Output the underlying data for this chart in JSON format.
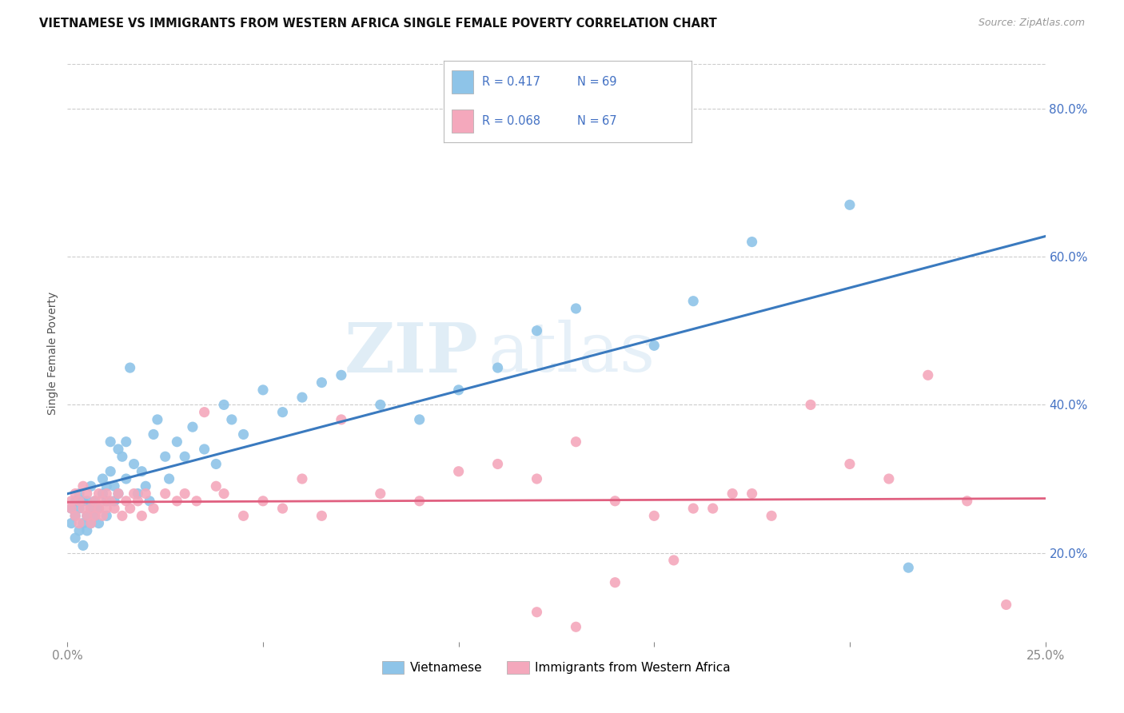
{
  "title": "VIETNAMESE VS IMMIGRANTS FROM WESTERN AFRICA SINGLE FEMALE POVERTY CORRELATION CHART",
  "source": "Source: ZipAtlas.com",
  "ylabel": "Single Female Poverty",
  "legend_label1": "Vietnamese",
  "legend_label2": "Immigrants from Western Africa",
  "r1": "0.417",
  "n1": "69",
  "r2": "0.068",
  "n2": "67",
  "color_blue": "#8ec4e8",
  "color_pink": "#f4a8bc",
  "color_blue_line": "#3a7abf",
  "color_pink_line": "#e06080",
  "watermark_zip": "ZIP",
  "watermark_atlas": "atlas",
  "xlim": [
    0.0,
    0.25
  ],
  "ylim": [
    0.08,
    0.86
  ],
  "yticks": [
    0.2,
    0.4,
    0.6,
    0.8
  ],
  "ytick_labels": [
    "20.0%",
    "40.0%",
    "60.0%",
    "80.0%"
  ],
  "blue_x": [
    0.001,
    0.001,
    0.002,
    0.002,
    0.002,
    0.003,
    0.003,
    0.003,
    0.004,
    0.004,
    0.004,
    0.005,
    0.005,
    0.005,
    0.006,
    0.006,
    0.006,
    0.007,
    0.007,
    0.008,
    0.008,
    0.009,
    0.009,
    0.01,
    0.01,
    0.01,
    0.011,
    0.011,
    0.012,
    0.012,
    0.013,
    0.013,
    0.014,
    0.015,
    0.015,
    0.016,
    0.017,
    0.018,
    0.019,
    0.02,
    0.021,
    0.022,
    0.023,
    0.025,
    0.026,
    0.028,
    0.03,
    0.032,
    0.035,
    0.038,
    0.04,
    0.042,
    0.045,
    0.05,
    0.055,
    0.06,
    0.065,
    0.07,
    0.08,
    0.09,
    0.1,
    0.11,
    0.12,
    0.13,
    0.15,
    0.16,
    0.175,
    0.2,
    0.215
  ],
  "blue_y": [
    0.24,
    0.26,
    0.22,
    0.25,
    0.27,
    0.23,
    0.26,
    0.28,
    0.21,
    0.24,
    0.27,
    0.25,
    0.23,
    0.27,
    0.26,
    0.24,
    0.29,
    0.25,
    0.27,
    0.24,
    0.26,
    0.3,
    0.28,
    0.25,
    0.27,
    0.29,
    0.31,
    0.35,
    0.29,
    0.27,
    0.28,
    0.34,
    0.33,
    0.35,
    0.3,
    0.45,
    0.32,
    0.28,
    0.31,
    0.29,
    0.27,
    0.36,
    0.38,
    0.33,
    0.3,
    0.35,
    0.33,
    0.37,
    0.34,
    0.32,
    0.4,
    0.38,
    0.36,
    0.42,
    0.39,
    0.41,
    0.43,
    0.44,
    0.4,
    0.38,
    0.42,
    0.45,
    0.5,
    0.53,
    0.48,
    0.54,
    0.62,
    0.67,
    0.18
  ],
  "pink_x": [
    0.001,
    0.001,
    0.002,
    0.002,
    0.003,
    0.003,
    0.004,
    0.004,
    0.005,
    0.005,
    0.006,
    0.006,
    0.007,
    0.007,
    0.008,
    0.008,
    0.009,
    0.009,
    0.01,
    0.01,
    0.011,
    0.012,
    0.013,
    0.014,
    0.015,
    0.016,
    0.017,
    0.018,
    0.019,
    0.02,
    0.022,
    0.025,
    0.028,
    0.03,
    0.033,
    0.035,
    0.038,
    0.04,
    0.045,
    0.05,
    0.055,
    0.06,
    0.065,
    0.07,
    0.08,
    0.09,
    0.1,
    0.11,
    0.12,
    0.13,
    0.14,
    0.15,
    0.16,
    0.17,
    0.18,
    0.19,
    0.2,
    0.21,
    0.22,
    0.23,
    0.24,
    0.12,
    0.13,
    0.14,
    0.155,
    0.165,
    0.175
  ],
  "pink_y": [
    0.26,
    0.27,
    0.25,
    0.28,
    0.24,
    0.27,
    0.26,
    0.29,
    0.25,
    0.28,
    0.24,
    0.26,
    0.25,
    0.27,
    0.26,
    0.28,
    0.25,
    0.27,
    0.26,
    0.28,
    0.27,
    0.26,
    0.28,
    0.25,
    0.27,
    0.26,
    0.28,
    0.27,
    0.25,
    0.28,
    0.26,
    0.28,
    0.27,
    0.28,
    0.27,
    0.39,
    0.29,
    0.28,
    0.25,
    0.27,
    0.26,
    0.3,
    0.25,
    0.38,
    0.28,
    0.27,
    0.31,
    0.32,
    0.3,
    0.35,
    0.27,
    0.25,
    0.26,
    0.28,
    0.25,
    0.4,
    0.32,
    0.3,
    0.44,
    0.27,
    0.13,
    0.12,
    0.1,
    0.16,
    0.19,
    0.26,
    0.28
  ]
}
